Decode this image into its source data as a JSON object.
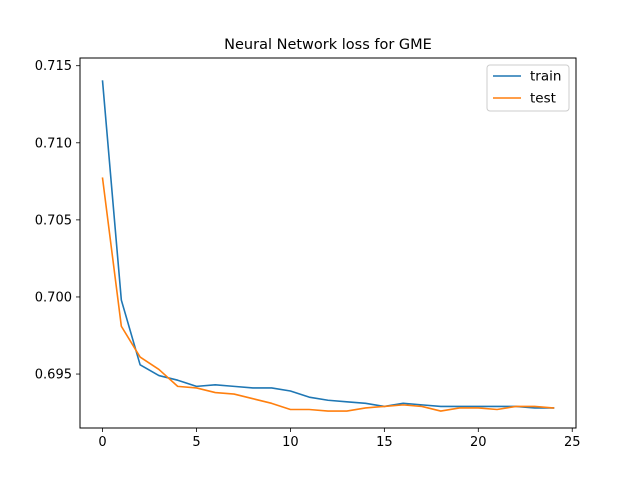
{
  "chart_data": {
    "type": "line",
    "title": "Neural Network loss for GME",
    "xlabel": "",
    "ylabel": "",
    "xlim": [
      -1.2,
      25.2
    ],
    "ylim": [
      0.6915,
      0.7155
    ],
    "xticks": [
      0,
      5,
      10,
      15,
      20,
      25
    ],
    "xtick_labels": [
      "0",
      "5",
      "10",
      "15",
      "20",
      "25"
    ],
    "yticks": [
      0.695,
      0.7,
      0.705,
      0.71,
      0.715
    ],
    "ytick_labels": [
      "0.695",
      "0.700",
      "0.705",
      "0.710",
      "0.715"
    ],
    "grid": false,
    "legend_position": "top-right",
    "x": [
      0,
      1,
      2,
      3,
      4,
      5,
      6,
      7,
      8,
      9,
      10,
      11,
      12,
      13,
      14,
      15,
      16,
      17,
      18,
      19,
      20,
      21,
      22,
      23,
      24
    ],
    "series": [
      {
        "name": "train",
        "color": "#1f77b4",
        "values": [
          0.714,
          0.6998,
          0.6956,
          0.6949,
          0.6946,
          0.6942,
          0.6943,
          0.6942,
          0.6941,
          0.6941,
          0.6939,
          0.6935,
          0.6933,
          0.6932,
          0.6931,
          0.6929,
          0.6931,
          0.693,
          0.6929,
          0.6929,
          0.6929,
          0.6929,
          0.6929,
          0.6928,
          0.6928
        ]
      },
      {
        "name": "test",
        "color": "#ff7f0e",
        "values": [
          0.7077,
          0.6981,
          0.6961,
          0.6953,
          0.6942,
          0.6941,
          0.6938,
          0.6937,
          0.6934,
          0.6931,
          0.6927,
          0.6927,
          0.6926,
          0.6926,
          0.6928,
          0.6929,
          0.693,
          0.6929,
          0.6926,
          0.6928,
          0.6928,
          0.6927,
          0.6929,
          0.6929,
          0.6928
        ]
      }
    ]
  }
}
